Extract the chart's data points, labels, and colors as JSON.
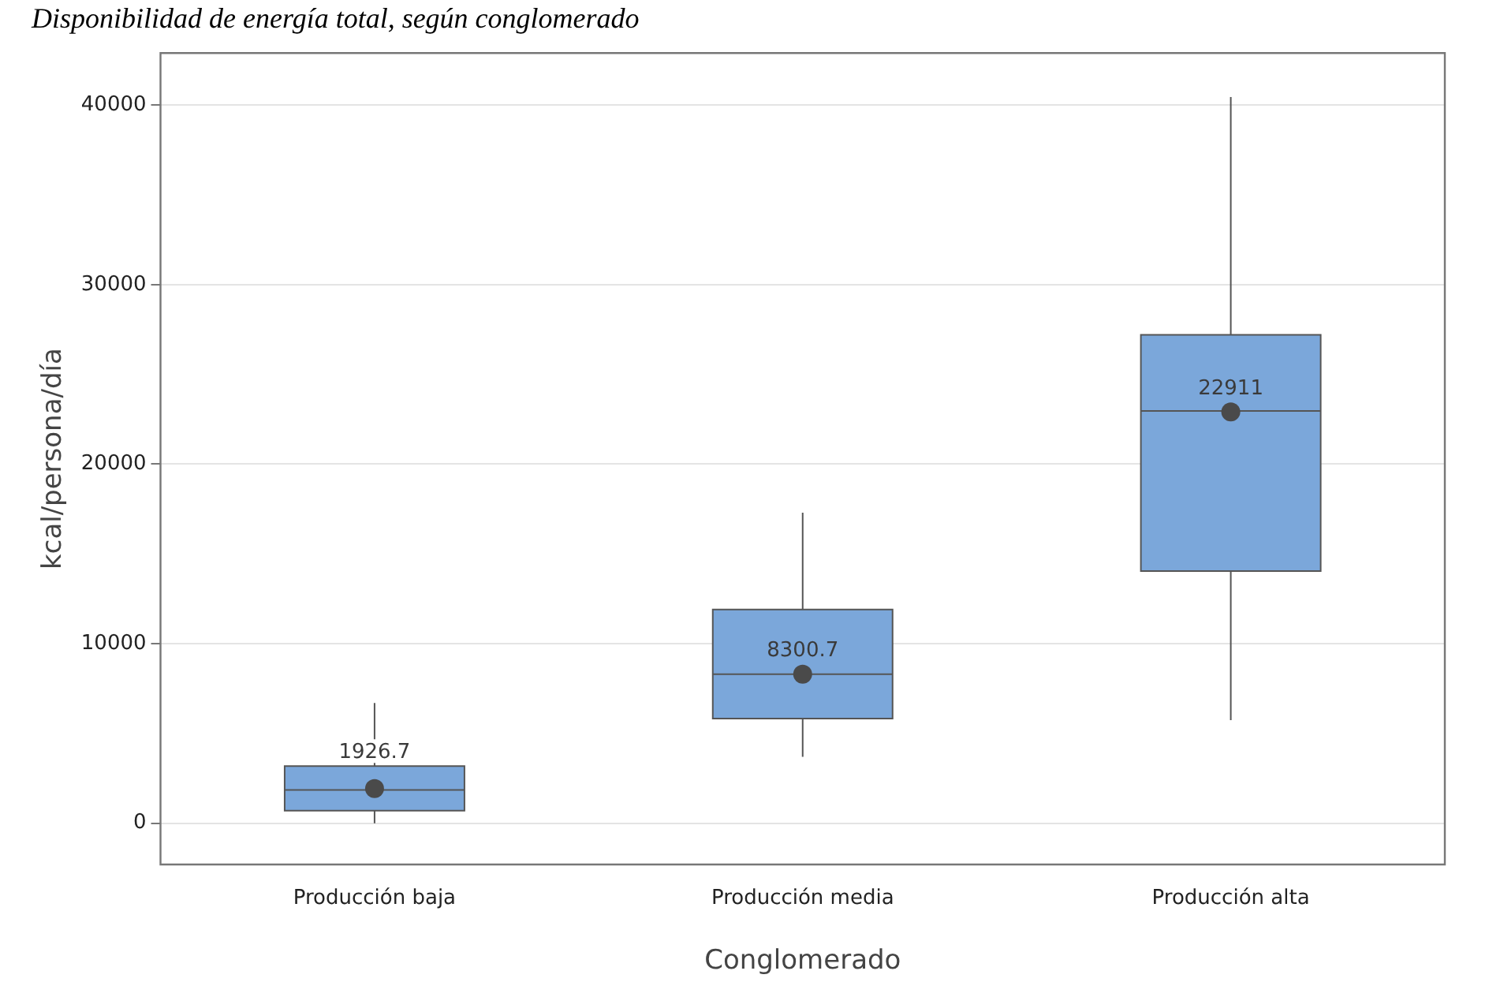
{
  "chart_data": {
    "type": "box",
    "title": "Disponibilidad de energía total, según conglomerado",
    "xlabel": "Conglomerado",
    "ylabel": "kcal/persona/día",
    "categories": [
      "Producción baja",
      "Producción media",
      "Producción alta"
    ],
    "boxes": [
      {
        "low": 0,
        "q1": 700,
        "median": 1850,
        "q3": 3180,
        "high": 6700,
        "mean": 1926.7
      },
      {
        "low": 3700,
        "q1": 5830,
        "median": 8300,
        "q3": 11900,
        "high": 17300,
        "mean": 8300.7
      },
      {
        "low": 5740,
        "q1": 14040,
        "median": 22960,
        "q3": 27200,
        "high": 40450,
        "mean": 22911
      }
    ],
    "color": "#7ba7da",
    "ylim": [
      -2300,
      42900
    ],
    "yticks": [
      0,
      10000,
      20000,
      30000,
      40000
    ],
    "grid": "y",
    "annotations": [
      {
        "text": "1926.7",
        "x": "Producción baja",
        "y": 1926.7
      },
      {
        "text": "8300.7",
        "x": "Producción media",
        "y": 8300.7
      },
      {
        "text": "22911",
        "x": "Producción alta",
        "y": 22911
      }
    ]
  }
}
